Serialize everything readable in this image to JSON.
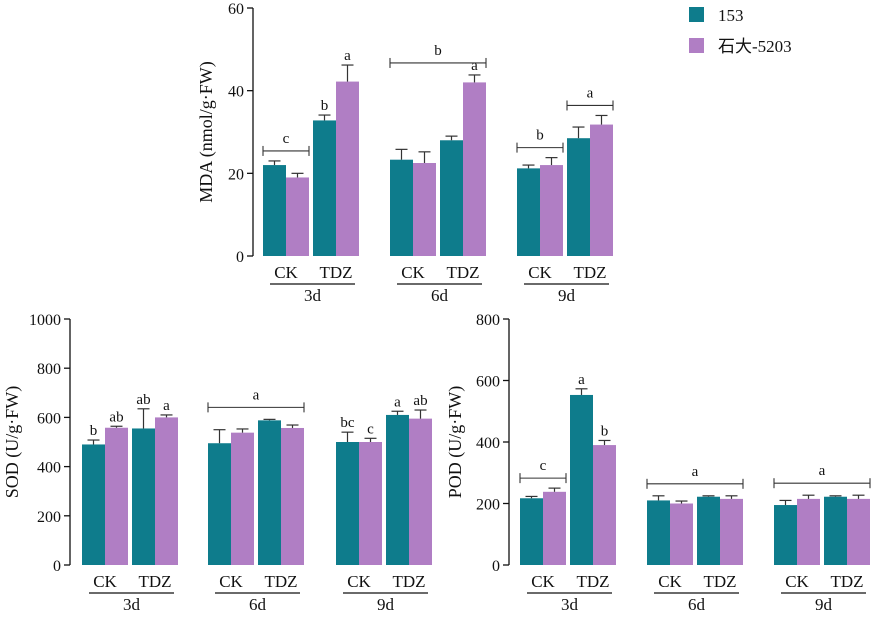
{
  "legend": {
    "items": [
      {
        "label": "153",
        "color": "#0E7C8C"
      },
      {
        "label": "石大-5203",
        "color": "#B07EC4"
      }
    ]
  },
  "chart_data": [
    {
      "id": "mda",
      "type": "bar",
      "ylabel": "MDA (nmol/g·FW)",
      "ylim": [
        0,
        60
      ],
      "yticks": [
        0,
        20,
        40,
        60
      ],
      "groups": [
        "3d",
        "6d",
        "9d"
      ],
      "categories": [
        "CK",
        "TDZ"
      ],
      "series": [
        {
          "name": "153",
          "values": [
            [
              22.0,
              32.8
            ],
            [
              23.3,
              28.0
            ],
            [
              21.2,
              28.5
            ]
          ],
          "errors": [
            [
              1.0,
              1.3
            ],
            [
              2.5,
              1.0
            ],
            [
              0.8,
              2.7
            ]
          ]
        },
        {
          "name": "石大-5203",
          "values": [
            [
              19.0,
              42.2
            ],
            [
              22.5,
              42.0
            ],
            [
              22.0,
              31.8
            ]
          ],
          "errors": [
            [
              1.0,
              4.0
            ],
            [
              2.7,
              1.8
            ],
            [
              1.8,
              2.2
            ]
          ]
        }
      ],
      "bar_letters": [
        [
          [
            "",
            "b"
          ],
          [
            "",
            ""
          ],
          [
            "",
            ""
          ]
        ],
        [
          [
            "",
            "a"
          ],
          [
            "",
            "a"
          ],
          [
            "",
            ""
          ]
        ]
      ],
      "bracket_letters": [
        [
          "c",
          ""
        ],
        [
          "b",
          ""
        ],
        [
          "b",
          "a"
        ]
      ]
    },
    {
      "id": "sod",
      "type": "bar",
      "ylabel": "SOD (U/g·FW)",
      "ylim": [
        0,
        1000
      ],
      "yticks": [
        0,
        200,
        400,
        600,
        800,
        1000
      ],
      "groups": [
        "3d",
        "6d",
        "9d"
      ],
      "categories": [
        "CK",
        "TDZ"
      ],
      "series": [
        {
          "name": "153",
          "values": [
            [
              490,
              555
            ],
            [
              495,
              588
            ],
            [
              500,
              610
            ]
          ],
          "errors": [
            [
              18,
              80
            ],
            [
              55,
              4
            ],
            [
              40,
              15
            ]
          ]
        },
        {
          "name": "石大-5203",
          "values": [
            [
              558,
              600
            ],
            [
              538,
              557
            ],
            [
              500,
              595
            ]
          ],
          "errors": [
            [
              6,
              10
            ],
            [
              15,
              12
            ],
            [
              15,
              35
            ]
          ]
        }
      ],
      "bar_letters": [
        [
          [
            "b",
            "ab"
          ],
          [
            "",
            ""
          ],
          [
            "bc",
            "a"
          ]
        ],
        [
          [
            "ab",
            "a"
          ],
          [
            "",
            ""
          ],
          [
            "c",
            "ab"
          ]
        ]
      ],
      "bracket_letters": [
        [
          "",
          ""
        ],
        [
          "a",
          ""
        ],
        [
          "",
          ""
        ]
      ]
    },
    {
      "id": "pod",
      "type": "bar",
      "ylabel": "POD (U/g·FW)",
      "ylim": [
        0,
        800
      ],
      "yticks": [
        0,
        200,
        400,
        600,
        800
      ],
      "groups": [
        "3d",
        "6d",
        "9d"
      ],
      "categories": [
        "CK",
        "TDZ"
      ],
      "series": [
        {
          "name": "153",
          "values": [
            [
              217,
              553
            ],
            [
              210,
              222
            ],
            [
              195,
              222
            ]
          ],
          "errors": [
            [
              6,
              20
            ],
            [
              15,
              3
            ],
            [
              15,
              3
            ]
          ]
        },
        {
          "name": "石大-5203",
          "values": [
            [
              238,
              390
            ],
            [
              200,
              215
            ],
            [
              215,
              215
            ]
          ],
          "errors": [
            [
              12,
              15
            ],
            [
              8,
              10
            ],
            [
              12,
              12
            ]
          ]
        }
      ],
      "bar_letters": [
        [
          [
            "",
            "a"
          ],
          [
            "",
            ""
          ],
          [
            "",
            ""
          ]
        ],
        [
          [
            "",
            "b"
          ],
          [
            "",
            ""
          ],
          [
            "",
            ""
          ]
        ]
      ],
      "bracket_letters": [
        [
          "c",
          ""
        ],
        [
          "a",
          ""
        ],
        [
          "a",
          ""
        ]
      ]
    }
  ]
}
